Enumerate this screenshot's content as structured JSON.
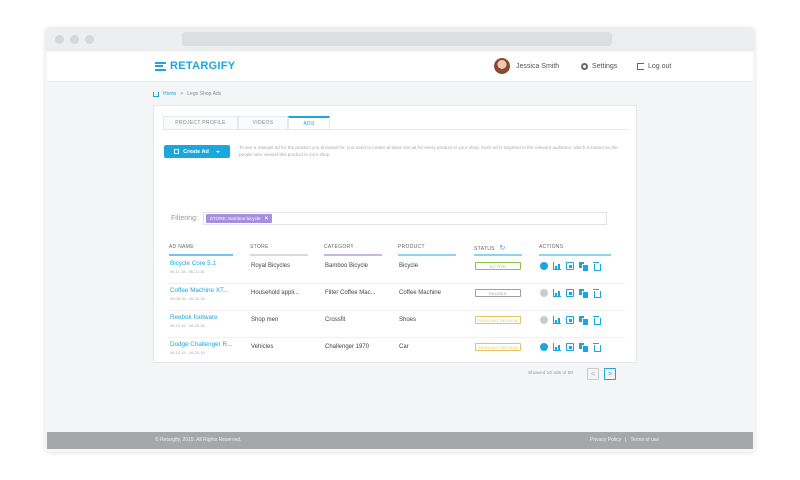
{
  "header": {
    "logo_text": "RETARGIFY",
    "user_name": "Jessica Smith",
    "settings_label": "Settings",
    "logout_label": "Log out"
  },
  "breadcrumb": {
    "home": "Home",
    "separator": ">",
    "current": "Lego Shop Ads"
  },
  "tabs": [
    "PROJECT PROFILE",
    "VIDEOS",
    "ADS"
  ],
  "create_button": "Create Ad",
  "info_text": "To see a retarget ad for the product you browsed for, you need to create at least one ad for every product in your shop. Each ad is targeted to the relevant audience, which is based on the people who viewed this product in your shop.",
  "filter": {
    "label": "Filtering:",
    "chip": "STORE: Bamboo bicycle"
  },
  "columns": [
    "AD NAME",
    "STORE",
    "CATEGORY",
    "PRODUCT",
    "STATUS",
    "ACTIONS"
  ],
  "rows": [
    {
      "name": "Bicycle Core 5.1",
      "date": "06.11.15 - 06.22.16",
      "store": "Royal Bicycles",
      "category": "Bamboo Bicycle",
      "product": "Bicycle",
      "status": "ACTIVE",
      "status_color": "#8bc34a",
      "active": true
    },
    {
      "name": "Coffee Machine XT...",
      "date": "06.08.16 - 06.22.16",
      "store": "Household appli...",
      "category": "Filter Coffee Mac...",
      "product": "Coffee Machine",
      "status": "PAUSED",
      "status_color": "#9e9e9e",
      "active": false
    },
    {
      "name": "Reebok footware",
      "date": "06.10.16 - 06.25.16",
      "store": "Shop men",
      "category": "Crossfit",
      "product": "Shoes",
      "status": "PENDING REVIEW",
      "status_color": "#e8c45a",
      "active": false
    },
    {
      "name": "Dodge Challenger R...",
      "date": "06.15.15 - 06.29.15",
      "store": "Vehicles",
      "category": "Challenger 1970",
      "product": "Car",
      "status": "PENDING REVIEW",
      "status_color": "#e8c45a",
      "active": true
    }
  ],
  "pager": {
    "text": "Showed 10 ads of 50",
    "prev": "<",
    "next": ">"
  },
  "footer": {
    "copyright": "© Retargify, 2015. All Rights Reserved.",
    "privacy": "Privacy Policy",
    "divider": "|",
    "terms": "Terms of use"
  },
  "colors": {
    "accent": "#1ba7dd",
    "chip": "#a68ee0"
  }
}
